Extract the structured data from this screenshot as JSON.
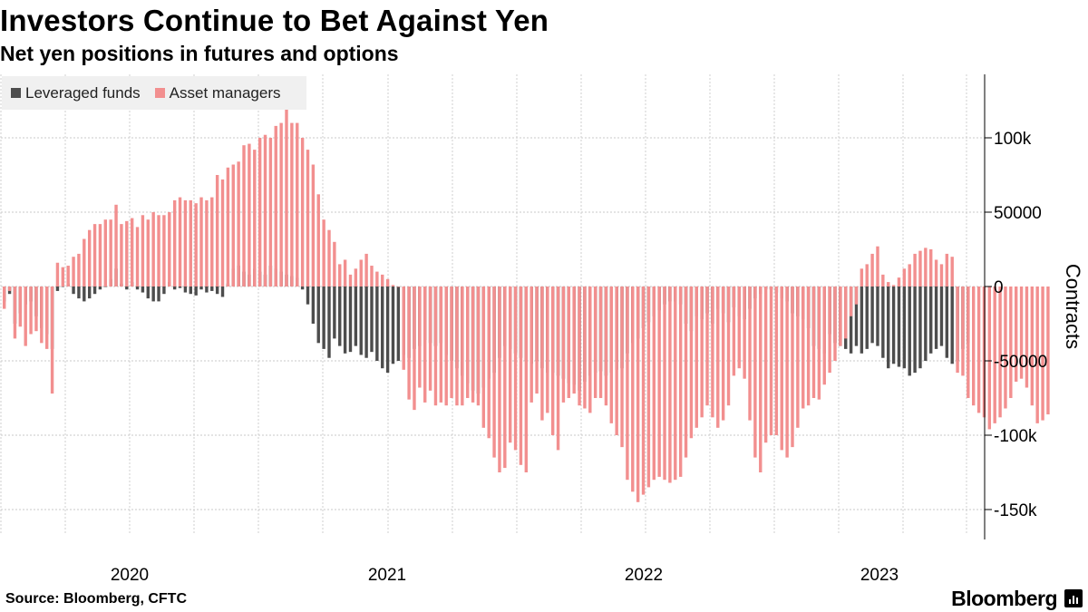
{
  "header": {
    "title": "Investors Continue to Bet Against Yen",
    "subtitle": "Net yen positions in futures and options"
  },
  "legend": {
    "items": [
      {
        "label": "Leveraged funds",
        "color": "#4d4d4d"
      },
      {
        "label": "Asset managers",
        "color": "#f28f8f"
      }
    ]
  },
  "footer": {
    "source": "Source: Bloomberg, CFTC",
    "brand": "Bloomberg",
    "brand_icon": "bloomberg-terminal-icon"
  },
  "chart_data": {
    "type": "bar",
    "x_start": "2019-08-06",
    "x_interval": "weekly",
    "ylabel": "Contracts",
    "ylim": [
      -170000,
      140000
    ],
    "yticks": [
      {
        "value": 100000,
        "label": "100k"
      },
      {
        "value": 50000,
        "label": "50000"
      },
      {
        "value": 0,
        "label": "0"
      },
      {
        "value": -50000,
        "label": "-50000"
      },
      {
        "value": -100000,
        "label": "-100k"
      },
      {
        "value": -150000,
        "label": "-150k"
      }
    ],
    "xticks": [
      {
        "label": "2020"
      },
      {
        "label": "2021"
      },
      {
        "label": "2022"
      },
      {
        "label": "2023"
      }
    ],
    "grid": true,
    "series": [
      {
        "name": "Leveraged funds",
        "color": "#4d4d4d",
        "values": [
          -10000,
          -5000,
          -25000,
          -18000,
          -12000,
          -10000,
          -20000,
          -28000,
          -32000,
          -42000,
          -3000,
          0,
          2000,
          -5000,
          -8000,
          -10000,
          -8000,
          -5000,
          -2000,
          0,
          5000,
          12000,
          2000,
          -2000,
          3000,
          -2000,
          -4000,
          -8000,
          -10000,
          -10000,
          -5000,
          3000,
          -2000,
          -1000,
          -4000,
          -5000,
          -6000,
          -2000,
          -4000,
          -3000,
          -5000,
          -7000,
          2000,
          12000,
          14000,
          10000,
          8000,
          12000,
          10000,
          8000,
          14000,
          12000,
          10000,
          8000,
          7000,
          6000,
          -2000,
          -12000,
          -25000,
          -38000,
          -42000,
          -48000,
          -35000,
          -40000,
          -45000,
          -44000,
          -40000,
          -46000,
          -48000,
          -44000,
          -50000,
          -55000,
          -58000,
          -52000,
          -50000,
          -46000,
          -48000,
          -42000,
          -40000,
          -36000,
          -38000,
          -40000,
          -38000,
          -46000,
          -50000,
          -55000,
          -60000,
          -65000,
          -70000,
          -72000,
          -68000,
          -62000,
          -58000,
          -48000,
          -40000,
          -42000,
          -45000,
          -48000,
          -50000,
          -52000,
          -50000,
          -55000,
          -58000,
          -58000,
          -60000,
          -62000,
          -65000,
          -66000,
          -70000,
          -64000,
          -60000,
          -58000,
          -57000,
          -60000,
          -58000,
          -56000,
          -55000,
          -45000,
          -38000,
          -35000,
          -28000,
          -24000,
          -20000,
          -16000,
          -12000,
          -10000,
          -10000,
          -12000,
          -25000,
          -30000,
          -20000,
          -22000,
          -18000,
          -25000,
          -15000,
          -18000,
          -24000,
          -14000,
          -20000,
          -22000,
          -15000,
          -8000,
          -5000,
          -2000,
          -2000,
          -4000,
          -8000,
          -10000,
          -18000,
          -20000,
          -22000,
          -28000,
          -40000,
          -42000,
          -45000,
          -32000,
          -38000,
          -40000,
          -42000,
          -45000,
          -40000,
          -45000,
          -42000,
          -38000,
          -40000,
          -48000,
          -55000,
          -52000,
          -54000,
          -55000,
          -60000,
          -58000,
          -55000,
          -50000,
          -45000,
          -42000,
          -40000,
          -48000,
          -52000,
          -50000,
          -42000,
          -38000
        ]
      },
      {
        "name": "Asset managers",
        "color": "#f28f8f",
        "values": [
          -15000,
          -3000,
          -35000,
          -27000,
          -40000,
          -32000,
          -30000,
          -38000,
          -42000,
          -72000,
          16000,
          13000,
          14000,
          20000,
          22000,
          32000,
          38000,
          42000,
          42000,
          45000,
          45000,
          55000,
          42000,
          44000,
          46000,
          40000,
          48000,
          45000,
          50000,
          48000,
          48000,
          50000,
          58000,
          60000,
          58000,
          58000,
          56000,
          60000,
          58000,
          60000,
          75000,
          72000,
          80000,
          82000,
          84000,
          95000,
          96000,
          92000,
          100000,
          102000,
          100000,
          108000,
          110000,
          120000,
          110000,
          110000,
          100000,
          92000,
          82000,
          62000,
          45000,
          38000,
          30000,
          15000,
          18000,
          8000,
          12000,
          18000,
          22000,
          14000,
          10000,
          8000,
          5000,
          1000,
          0,
          -56000,
          -76000,
          -83000,
          -68000,
          -78000,
          -70000,
          -80000,
          -78000,
          -80000,
          -75000,
          -80000,
          -80000,
          -75000,
          -78000,
          -80000,
          -95000,
          -102000,
          -115000,
          -125000,
          -122000,
          -105000,
          -110000,
          -120000,
          -125000,
          -78000,
          -72000,
          -90000,
          -85000,
          -100000,
          -110000,
          -78000,
          -75000,
          -72000,
          -80000,
          -82000,
          -85000,
          -75000,
          -75000,
          -80000,
          -92000,
          -100000,
          -108000,
          -130000,
          -138000,
          -145000,
          -140000,
          -135000,
          -130000,
          -128000,
          -130000,
          -132000,
          -130000,
          -128000,
          -115000,
          -102000,
          -95000,
          -88000,
          -80000,
          -88000,
          -95000,
          -90000,
          -80000,
          -60000,
          -55000,
          -62000,
          -90000,
          -115000,
          -125000,
          -105000,
          -100000,
          -100000,
          -110000,
          -115000,
          -108000,
          -95000,
          -82000,
          -80000,
          -75000,
          -76000,
          -66000,
          -58000,
          -50000,
          -40000,
          -35000,
          -20000,
          -12000,
          12000,
          15000,
          22000,
          27000,
          8000,
          3000,
          1000,
          6000,
          12000,
          15000,
          22000,
          24000,
          26000,
          25000,
          18000,
          15000,
          22000,
          20000,
          -58000,
          -60000,
          -75000,
          -80000,
          -85000,
          -88000,
          -96000,
          -92000,
          -88000,
          -82000,
          -75000,
          -64000,
          -62000,
          -68000,
          -80000,
          -92000,
          -90000,
          -86000
        ]
      }
    ]
  }
}
